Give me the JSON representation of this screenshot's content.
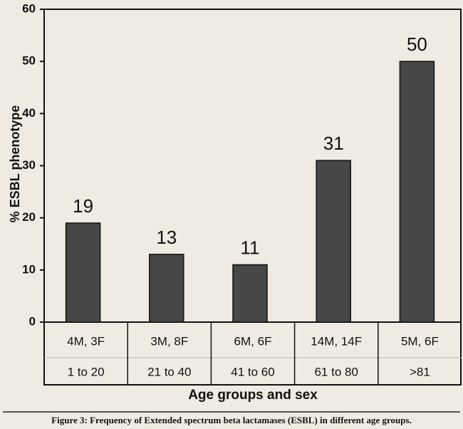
{
  "chart_data": {
    "type": "bar",
    "y_label": "% ESBL phenotype",
    "x_label": "Age groups and sex",
    "caption": "Figure 3: Frequency of Extended spectrum beta lactamases (ESBL) in different age groups.",
    "categories": [
      "1 to 20",
      "21 to 40",
      "41 to 60",
      "61 to 80",
      ">81"
    ],
    "sex": [
      "4M, 3F",
      "3M, 8F",
      "6M, 6F",
      "14M, 14F",
      "5M, 6F"
    ],
    "values": [
      19,
      13,
      11,
      31,
      50
    ],
    "color": "#474747",
    "ylim": [
      0,
      60
    ],
    "yticks": [
      0,
      10,
      20,
      30,
      40,
      50,
      60
    ]
  }
}
